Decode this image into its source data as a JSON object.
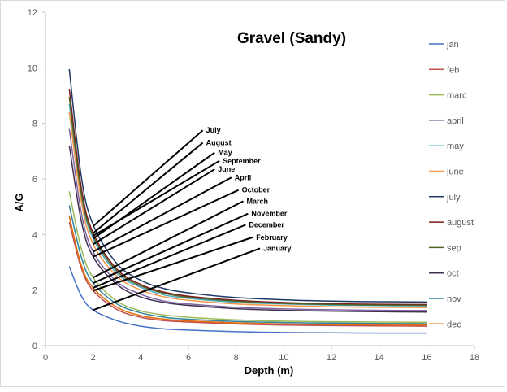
{
  "chart_data": {
    "type": "line",
    "title": "Gravel (Sandy)",
    "xlabel": "Depth (m)",
    "ylabel": "A/G",
    "xlim": [
      0,
      18
    ],
    "ylim": [
      0,
      12
    ],
    "x_ticks": [
      0,
      2,
      4,
      6,
      8,
      10,
      12,
      14,
      16,
      18
    ],
    "y_ticks": [
      0,
      2,
      4,
      6,
      8,
      10,
      12
    ],
    "grid": false,
    "legend_position": "right",
    "x": [
      1,
      1.5,
      2,
      3,
      4,
      5,
      6,
      8,
      10,
      12,
      14,
      16
    ],
    "series": [
      {
        "name": "jan",
        "color": "#4472c4",
        "values": [
          2.85,
          1.8,
          1.28,
          0.9,
          0.7,
          0.6,
          0.56,
          0.5,
          0.47,
          0.46,
          0.45,
          0.45
        ]
      },
      {
        "name": "feb",
        "color": "#c0504d",
        "values": [
          4.45,
          2.8,
          1.98,
          1.3,
          1.02,
          0.9,
          0.85,
          0.78,
          0.74,
          0.72,
          0.71,
          0.7
        ]
      },
      {
        "name": "marc",
        "color": "#9bbb59",
        "values": [
          5.55,
          3.5,
          2.45,
          1.6,
          1.25,
          1.1,
          1.02,
          0.93,
          0.88,
          0.86,
          0.85,
          0.84
        ]
      },
      {
        "name": "april",
        "color": "#8064a2",
        "values": [
          7.8,
          4.8,
          3.38,
          2.3,
          1.85,
          1.6,
          1.5,
          1.38,
          1.32,
          1.29,
          1.27,
          1.26
        ]
      },
      {
        "name": "may",
        "color": "#4bacc6",
        "values": [
          8.7,
          5.4,
          3.85,
          2.6,
          2.1,
          1.82,
          1.7,
          1.56,
          1.5,
          1.46,
          1.44,
          1.43
        ]
      },
      {
        "name": "june",
        "color": "#f79646",
        "values": [
          8.4,
          5.2,
          3.65,
          2.5,
          2.0,
          1.75,
          1.63,
          1.5,
          1.44,
          1.4,
          1.38,
          1.37
        ]
      },
      {
        "name": "july",
        "color": "#1f3864",
        "values": [
          9.95,
          6.1,
          4.35,
          2.95,
          2.35,
          2.05,
          1.9,
          1.73,
          1.65,
          1.6,
          1.58,
          1.57
        ]
      },
      {
        "name": "august",
        "color": "#7f1a1a",
        "values": [
          9.25,
          5.7,
          4.05,
          2.75,
          2.2,
          1.92,
          1.78,
          1.63,
          1.55,
          1.51,
          1.49,
          1.48
        ]
      },
      {
        "name": "sep",
        "color": "#4f6228",
        "values": [
          8.95,
          5.5,
          3.95,
          2.68,
          2.15,
          1.88,
          1.74,
          1.6,
          1.52,
          1.48,
          1.46,
          1.45
        ]
      },
      {
        "name": "oct",
        "color": "#403151",
        "values": [
          7.2,
          4.5,
          3.2,
          2.2,
          1.75,
          1.55,
          1.45,
          1.33,
          1.27,
          1.24,
          1.22,
          1.21
        ]
      },
      {
        "name": "nov",
        "color": "#31859c",
        "values": [
          5.05,
          3.2,
          2.25,
          1.5,
          1.18,
          1.02,
          0.95,
          0.87,
          0.83,
          0.81,
          0.8,
          0.79
        ]
      },
      {
        "name": "dec",
        "color": "#e46c0a",
        "values": [
          4.65,
          2.9,
          2.08,
          1.38,
          1.08,
          0.95,
          0.89,
          0.82,
          0.78,
          0.76,
          0.75,
          0.74
        ]
      }
    ],
    "annotations": [
      {
        "text": "July",
        "from": [
          2.0,
          4.3
        ],
        "to": [
          6.6,
          7.75
        ]
      },
      {
        "text": "August",
        "from": [
          2.0,
          4.05
        ],
        "to": [
          6.6,
          7.3
        ]
      },
      {
        "text": "May",
        "from": [
          2.0,
          3.85
        ],
        "to": [
          7.1,
          6.95
        ]
      },
      {
        "text": "September",
        "from": [
          2.0,
          3.95
        ],
        "to": [
          7.3,
          6.65
        ]
      },
      {
        "text": "June",
        "from": [
          2.0,
          3.65
        ],
        "to": [
          7.1,
          6.35
        ]
      },
      {
        "text": "April",
        "from": [
          2.0,
          3.38
        ],
        "to": [
          7.8,
          6.05
        ]
      },
      {
        "text": "October",
        "from": [
          2.0,
          3.2
        ],
        "to": [
          8.1,
          5.6
        ]
      },
      {
        "text": "March",
        "from": [
          2.0,
          2.45
        ],
        "to": [
          8.3,
          5.2
        ]
      },
      {
        "text": "November",
        "from": [
          2.0,
          2.25
        ],
        "to": [
          8.5,
          4.75
        ]
      },
      {
        "text": "December",
        "from": [
          2.0,
          2.08
        ],
        "to": [
          8.4,
          4.35
        ]
      },
      {
        "text": "February",
        "from": [
          2.0,
          1.98
        ],
        "to": [
          8.7,
          3.9
        ]
      },
      {
        "text": "January",
        "from": [
          2.0,
          1.28
        ],
        "to": [
          9.0,
          3.5
        ]
      }
    ]
  }
}
